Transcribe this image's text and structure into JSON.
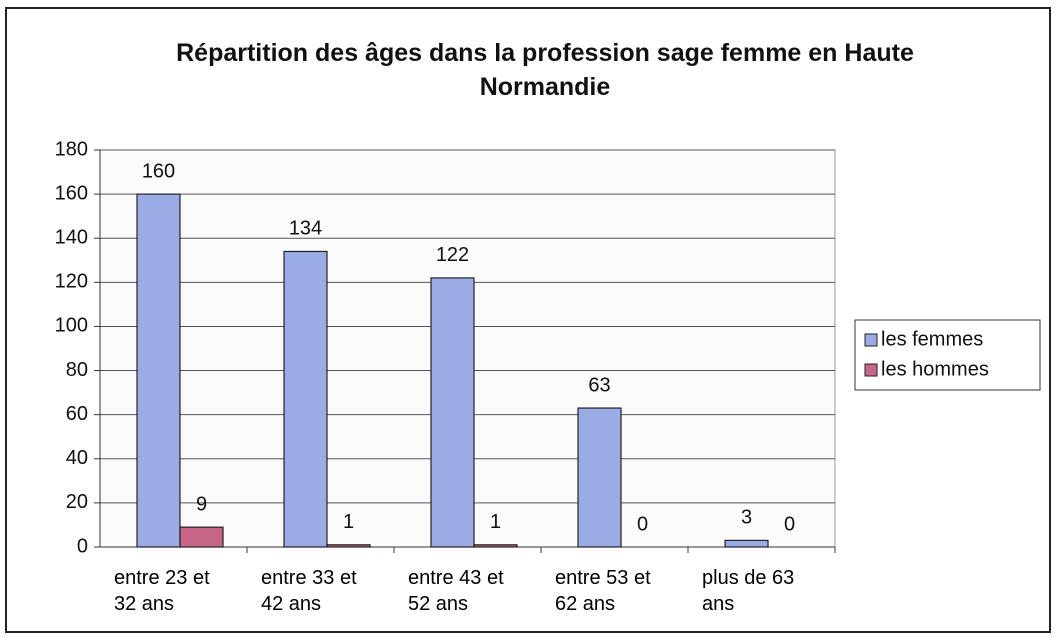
{
  "chart_data": {
    "type": "bar",
    "title": "Répartition des âges dans la profession sage femme en Haute Normandie",
    "categories": [
      "entre 23 et 32 ans",
      "entre 33 et 42 ans",
      "entre 43 et 52 ans",
      "entre 53 et 62 ans",
      "plus de 63 ans"
    ],
    "series": [
      {
        "name": "les femmes",
        "color": "#9aabe6",
        "values": [
          160,
          134,
          122,
          63,
          3
        ]
      },
      {
        "name": "les hommes",
        "color": "#c8668a",
        "values": [
          9,
          1,
          1,
          0,
          0
        ]
      }
    ],
    "ylim": [
      0,
      180
    ],
    "yticks": [
      0,
      20,
      40,
      60,
      80,
      100,
      120,
      140,
      160,
      180
    ],
    "grid": true,
    "legend": "right"
  }
}
